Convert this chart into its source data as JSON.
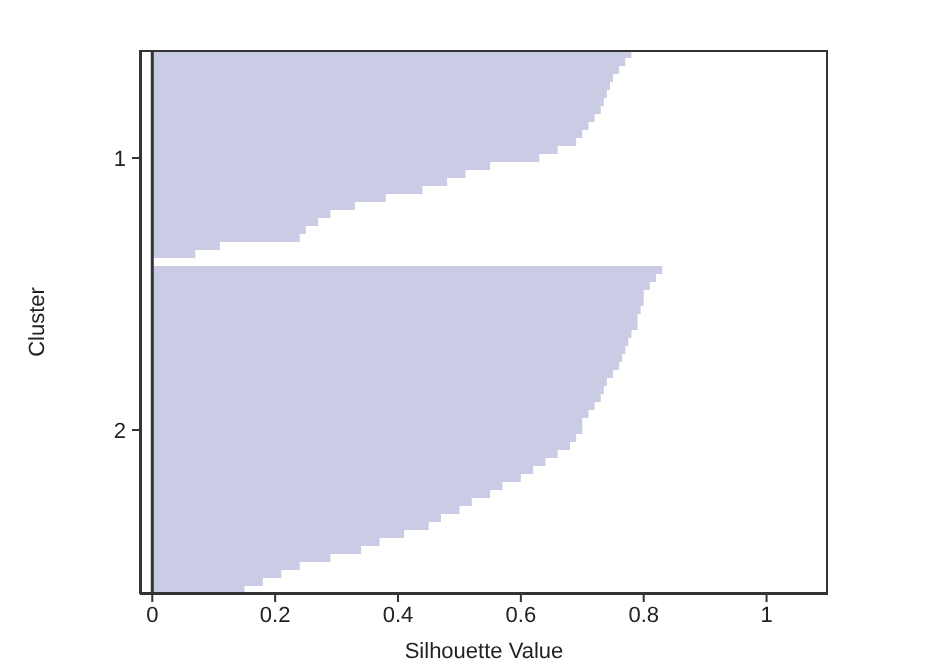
{
  "chart_data": {
    "type": "bar",
    "orientation": "horizontal",
    "xlabel": "Silhouette Value",
    "ylabel": "Cluster",
    "categories": [
      null,
      null,
      null,
      null,
      null,
      null,
      null,
      null,
      null,
      null,
      null,
      null,
      null,
      "1",
      null,
      null,
      null,
      null,
      null,
      null,
      null,
      null,
      null,
      null,
      null,
      null,
      null,
      null,
      null,
      null,
      null,
      null,
      null,
      null,
      null,
      null,
      null,
      null,
      null,
      null,
      null,
      null,
      null,
      null,
      null,
      null,
      null,
      "2",
      null,
      null,
      null,
      null,
      null,
      null,
      null,
      null,
      null,
      null,
      null,
      null,
      null,
      null,
      null,
      null,
      null,
      null,
      null,
      null
    ],
    "values": [
      0.78,
      0.77,
      0.76,
      0.75,
      0.745,
      0.74,
      0.735,
      0.73,
      0.72,
      0.71,
      0.7,
      0.69,
      0.66,
      0.63,
      0.55,
      0.51,
      0.48,
      0.44,
      0.38,
      0.33,
      0.29,
      0.27,
      0.25,
      0.24,
      0.11,
      0.07,
      null,
      0.83,
      0.82,
      0.81,
      0.8,
      0.8,
      0.795,
      0.79,
      0.79,
      0.78,
      0.775,
      0.77,
      0.765,
      0.76,
      0.75,
      0.74,
      0.735,
      0.73,
      0.72,
      0.71,
      0.7,
      0.7,
      0.69,
      0.68,
      0.66,
      0.64,
      0.62,
      0.6,
      0.57,
      0.55,
      0.52,
      0.5,
      0.47,
      0.45,
      0.41,
      0.37,
      0.34,
      0.29,
      0.24,
      0.21,
      0.18,
      0.15
    ],
    "color": "#cacbe5",
    "xlim": [
      -0.02,
      1.1
    ],
    "xticks": [
      0,
      0.2,
      0.4,
      0.6,
      0.8,
      1
    ],
    "ref_lines": [
      {
        "axis": "x",
        "value": 0,
        "color": "#333333"
      }
    ],
    "grid": false,
    "legend": false
  }
}
